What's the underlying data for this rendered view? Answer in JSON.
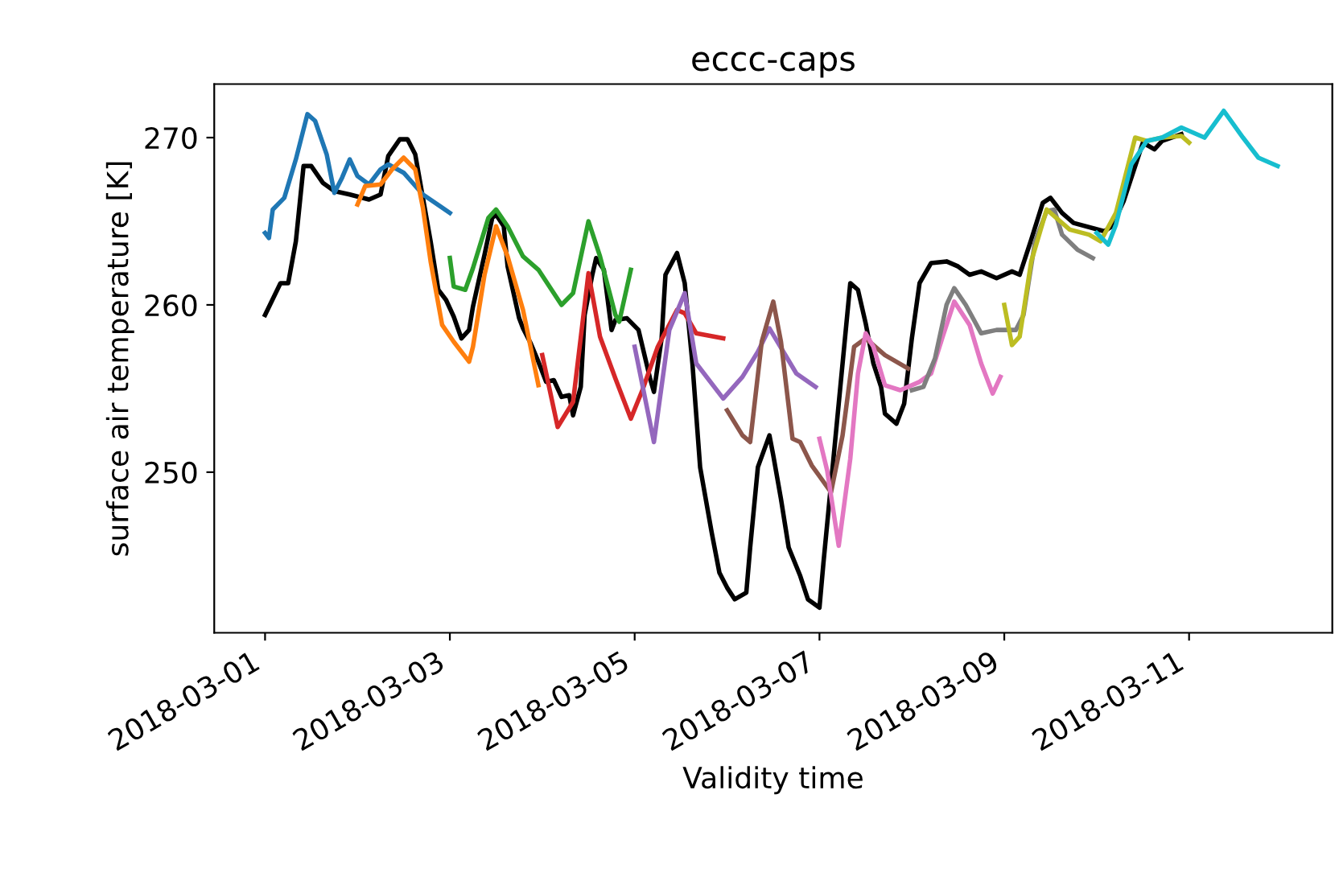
{
  "chart_data": {
    "type": "line",
    "title": "eccc-caps",
    "xlabel": "Validity time",
    "ylabel": "surface air temperature [K]",
    "grid": false,
    "legend": false,
    "marker": "none",
    "line_style": "solid",
    "xlim": [
      "2018-02-28T10:48",
      "2018-03-12T13:12"
    ],
    "xticks": [
      "2018-03-01",
      "2018-03-03",
      "2018-03-05",
      "2018-03-07",
      "2018-03-09",
      "2018-03-11"
    ],
    "ylim": [
      240.4,
      273.2
    ],
    "yticks": [
      250,
      260,
      270
    ],
    "series": [
      {
        "color": "#000000",
        "x": [
          "2018-03-01T00:00",
          "2018-03-01T04:00",
          "2018-03-01T06:00",
          "2018-03-01T08:00",
          "2018-03-01T10:00",
          "2018-03-01T12:00",
          "2018-03-01T15:00",
          "2018-03-01T18:00",
          "2018-03-01T22:00",
          "2018-03-02T03:00",
          "2018-03-02T06:00",
          "2018-03-02T08:00",
          "2018-03-02T11:00",
          "2018-03-02T13:00",
          "2018-03-02T15:00",
          "2018-03-02T17:00",
          "2018-03-02T19:00",
          "2018-03-02T21:00",
          "2018-03-02T23:00",
          "2018-03-03T01:00",
          "2018-03-03T03:00",
          "2018-03-03T05:00",
          "2018-03-03T06:00",
          "2018-03-03T09:00",
          "2018-03-03T11:00",
          "2018-03-03T12:00",
          "2018-03-03T14:00",
          "2018-03-03T15:00",
          "2018-03-03T18:00",
          "2018-03-03T19:00",
          "2018-03-03T21:00",
          "2018-03-03T23:00",
          "2018-03-04T01:00",
          "2018-03-04T03:00",
          "2018-03-04T05:00",
          "2018-03-04T07:00",
          "2018-03-04T08:00",
          "2018-03-04T10:00",
          "2018-03-04T11:00",
          "2018-03-04T13:00",
          "2018-03-04T14:00",
          "2018-03-04T16:00",
          "2018-03-04T18:00",
          "2018-03-04T19:00",
          "2018-03-04T22:00",
          "2018-03-05T01:00",
          "2018-03-05T04:00",
          "2018-03-05T05:00",
          "2018-03-05T07:00",
          "2018-03-05T08:00",
          "2018-03-05T11:00",
          "2018-03-05T13:00",
          "2018-03-05T15:00",
          "2018-03-05T17:00",
          "2018-03-05T20:00",
          "2018-03-05T22:00",
          "2018-03-06T00:00",
          "2018-03-06T02:00",
          "2018-03-06T05:00",
          "2018-03-06T06:00",
          "2018-03-06T08:00",
          "2018-03-06T11:00",
          "2018-03-06T12:00",
          "2018-03-06T14:00",
          "2018-03-06T16:00",
          "2018-03-06T19:00",
          "2018-03-06T21:00",
          "2018-03-07T00:00",
          "2018-03-07T01:00",
          "2018-03-07T03:00",
          "2018-03-07T05:00",
          "2018-03-07T08:00",
          "2018-03-07T10:00",
          "2018-03-07T12:00",
          "2018-03-07T14:00",
          "2018-03-07T16:00",
          "2018-03-07T17:00",
          "2018-03-07T20:00",
          "2018-03-07T22:00",
          "2018-03-08T00:00",
          "2018-03-08T02:00",
          "2018-03-08T05:00",
          "2018-03-08T09:00",
          "2018-03-08T12:00",
          "2018-03-08T15:00",
          "2018-03-08T18:00",
          "2018-03-08T22:00",
          "2018-03-09T02:00",
          "2018-03-09T04:00",
          "2018-03-09T07:00",
          "2018-03-09T10:00",
          "2018-03-09T12:00",
          "2018-03-09T15:00",
          "2018-03-09T18:00",
          "2018-03-10T02:00",
          "2018-03-10T04:00",
          "2018-03-10T07:00",
          "2018-03-10T12:00",
          "2018-03-10T15:00",
          "2018-03-10T17:00",
          "2018-03-10T22:00"
        ],
        "values": [
          259.4,
          261.3,
          261.3,
          263.8,
          268.3,
          268.3,
          267.3,
          266.8,
          266.6,
          266.3,
          266.6,
          268.9,
          269.9,
          269.9,
          269.0,
          266.4,
          263.8,
          260.9,
          260.3,
          259.3,
          258.0,
          258.5,
          259.9,
          263.0,
          265.2,
          265.4,
          264.7,
          262.3,
          259.2,
          258.6,
          257.7,
          256.6,
          255.4,
          255.5,
          254.5,
          254.6,
          253.4,
          255.1,
          259.4,
          261.8,
          262.8,
          262.1,
          258.5,
          259.1,
          259.2,
          258.5,
          255.6,
          254.8,
          258.0,
          261.8,
          263.1,
          261.3,
          256.5,
          250.3,
          246.4,
          244.0,
          243.1,
          242.4,
          242.8,
          245.5,
          250.3,
          252.2,
          251.0,
          248.4,
          245.5,
          243.8,
          242.4,
          241.9,
          244.5,
          249.3,
          254.1,
          261.3,
          260.9,
          258.9,
          256.5,
          255.1,
          253.5,
          252.9,
          254.1,
          258.0,
          261.3,
          262.5,
          262.6,
          262.3,
          261.8,
          262.0,
          261.6,
          262.0,
          261.8,
          263.9,
          266.1,
          266.4,
          265.5,
          264.9,
          264.4,
          264.7,
          266.2,
          269.7,
          269.3,
          269.8,
          270.2
        ]
      },
      {
        "color": "#1f77b4",
        "x": [
          "2018-03-01T00:00",
          "2018-03-01T01:00",
          "2018-03-01T02:00",
          "2018-03-01T05:00",
          "2018-03-01T08:00",
          "2018-03-01T11:00",
          "2018-03-01T13:00",
          "2018-03-01T16:00",
          "2018-03-01T18:00",
          "2018-03-01T20:00",
          "2018-03-01T22:00",
          "2018-03-02T00:00",
          "2018-03-02T03:00",
          "2018-03-02T06:00",
          "2018-03-02T08:00",
          "2018-03-02T12:00",
          "2018-03-02T17:00",
          "2018-03-03T00:00"
        ],
        "values": [
          264.3,
          264.0,
          265.7,
          266.4,
          268.7,
          271.4,
          271.0,
          269.0,
          266.7,
          267.6,
          268.7,
          267.7,
          267.2,
          268.1,
          268.4,
          267.9,
          266.6,
          265.5
        ]
      },
      {
        "color": "#ff7f0e",
        "x": [
          "2018-03-02T00:00",
          "2018-03-02T02:00",
          "2018-03-02T06:00",
          "2018-03-02T09:00",
          "2018-03-02T12:00",
          "2018-03-02T15:00",
          "2018-03-02T17:00",
          "2018-03-02T19:00",
          "2018-03-02T22:00",
          "2018-03-03T01:00",
          "2018-03-03T05:00",
          "2018-03-03T06:00",
          "2018-03-03T09:00",
          "2018-03-03T12:00",
          "2018-03-03T15:00",
          "2018-03-03T19:00",
          "2018-03-03T23:00"
        ],
        "values": [
          266.0,
          267.1,
          267.2,
          268.1,
          268.8,
          268.1,
          265.8,
          262.6,
          258.8,
          257.8,
          256.6,
          257.5,
          261.8,
          264.7,
          262.9,
          259.7,
          255.2
        ]
      },
      {
        "color": "#2ca02c",
        "x": [
          "2018-03-03T00:00",
          "2018-03-03T01:00",
          "2018-03-03T04:00",
          "2018-03-03T06:00",
          "2018-03-03T10:00",
          "2018-03-03T12:00",
          "2018-03-03T15:00",
          "2018-03-03T19:00",
          "2018-03-03T23:00",
          "2018-03-04T05:00",
          "2018-03-04T08:00",
          "2018-03-04T12:00",
          "2018-03-04T15:00",
          "2018-03-04T19:00",
          "2018-03-04T20:00",
          "2018-03-04T23:00"
        ],
        "values": [
          262.8,
          261.1,
          260.9,
          262.2,
          265.2,
          265.7,
          264.7,
          262.9,
          262.1,
          260.0,
          260.7,
          265.0,
          262.9,
          259.4,
          259.0,
          262.1
        ]
      },
      {
        "color": "#d62728",
        "x": [
          "2018-03-04T00:00",
          "2018-03-04T04:00",
          "2018-03-04T08:00",
          "2018-03-04T12:00",
          "2018-03-04T15:00",
          "2018-03-04T19:00",
          "2018-03-04T23:00",
          "2018-03-05T02:00",
          "2018-03-05T06:00",
          "2018-03-05T11:00",
          "2018-03-05T13:00",
          "2018-03-05T16:00",
          "2018-03-05T23:00"
        ],
        "values": [
          257.0,
          252.7,
          254.2,
          261.9,
          258.1,
          255.6,
          253.2,
          254.9,
          257.5,
          259.7,
          259.5,
          258.3,
          258.0
        ]
      },
      {
        "color": "#9467bd",
        "x": [
          "2018-03-05T00:00",
          "2018-03-05T05:00",
          "2018-03-05T09:00",
          "2018-03-05T13:00",
          "2018-03-05T16:00",
          "2018-03-05T23:00",
          "2018-03-06T04:00",
          "2018-03-06T08:00",
          "2018-03-06T11:00",
          "2018-03-06T18:00",
          "2018-03-06T23:00"
        ],
        "values": [
          257.5,
          251.8,
          258.5,
          260.7,
          256.5,
          254.4,
          255.7,
          257.2,
          258.6,
          255.9,
          255.1
        ]
      },
      {
        "color": "#8c564b",
        "x": [
          "2018-03-06T00:00",
          "2018-03-06T04:00",
          "2018-03-06T06:00",
          "2018-03-06T09:00",
          "2018-03-06T12:00",
          "2018-03-06T14:00",
          "2018-03-06T17:00",
          "2018-03-06T19:00",
          "2018-03-06T22:00",
          "2018-03-07T03:00",
          "2018-03-07T06:00",
          "2018-03-07T09:00",
          "2018-03-07T12:00",
          "2018-03-07T17:00",
          "2018-03-07T23:00"
        ],
        "values": [
          253.7,
          252.2,
          251.8,
          257.8,
          260.2,
          257.8,
          252.0,
          251.8,
          250.4,
          248.8,
          252.2,
          257.5,
          258.0,
          257.0,
          256.2
        ]
      },
      {
        "color": "#e377c2",
        "x": [
          "2018-03-07T00:00",
          "2018-03-07T02:00",
          "2018-03-07T05:00",
          "2018-03-07T08:00",
          "2018-03-07T10:00",
          "2018-03-07T12:00",
          "2018-03-07T14:00",
          "2018-03-07T17:00",
          "2018-03-07T21:00",
          "2018-03-08T02:00",
          "2018-03-08T05:00",
          "2018-03-08T08:00",
          "2018-03-08T11:00",
          "2018-03-08T15:00",
          "2018-03-08T18:00",
          "2018-03-08T21:00",
          "2018-03-08T23:00"
        ],
        "values": [
          252.0,
          250.1,
          245.6,
          250.8,
          255.9,
          258.3,
          257.5,
          255.2,
          254.9,
          255.4,
          255.9,
          258.1,
          260.2,
          258.8,
          256.5,
          254.7,
          255.7
        ]
      },
      {
        "color": "#7f7f7f",
        "x": [
          "2018-03-08T00:00",
          "2018-03-08T03:00",
          "2018-03-08T06:00",
          "2018-03-08T09:00",
          "2018-03-08T11:00",
          "2018-03-08T14:00",
          "2018-03-08T18:00",
          "2018-03-08T22:00",
          "2018-03-09T03:00",
          "2018-03-09T05:00",
          "2018-03-09T08:00",
          "2018-03-09T11:00",
          "2018-03-09T13:00",
          "2018-03-09T15:00",
          "2018-03-09T19:00",
          "2018-03-09T23:00"
        ],
        "values": [
          254.9,
          255.1,
          256.8,
          260.0,
          261.0,
          260.0,
          258.3,
          258.5,
          258.5,
          259.4,
          263.8,
          265.6,
          265.7,
          264.2,
          263.3,
          262.8
        ]
      },
      {
        "color": "#bcbd22",
        "x": [
          "2018-03-09T00:00",
          "2018-03-09T02:00",
          "2018-03-09T04:00",
          "2018-03-09T07:00",
          "2018-03-09T11:00",
          "2018-03-09T13:00",
          "2018-03-09T17:00",
          "2018-03-09T22:00",
          "2018-03-10T01:00",
          "2018-03-10T05:00",
          "2018-03-10T10:00",
          "2018-03-10T13:00",
          "2018-03-10T17:00",
          "2018-03-10T22:00",
          "2018-03-11T00:00"
        ],
        "values": [
          260.0,
          257.6,
          258.1,
          262.6,
          265.7,
          265.3,
          264.5,
          264.2,
          263.8,
          265.5,
          270.0,
          269.8,
          270.0,
          270.1,
          269.7
        ]
      },
      {
        "color": "#17becf",
        "x": [
          "2018-03-10T00:00",
          "2018-03-10T03:00",
          "2018-03-10T05:00",
          "2018-03-10T09:00",
          "2018-03-10T13:00",
          "2018-03-10T17:00",
          "2018-03-10T22:00",
          "2018-03-11T01:00",
          "2018-03-11T04:00",
          "2018-03-11T09:00",
          "2018-03-11T14:00",
          "2018-03-11T18:00",
          "2018-03-11T23:00"
        ],
        "values": [
          264.3,
          263.6,
          264.8,
          268.4,
          269.8,
          270.0,
          270.6,
          270.3,
          270.0,
          271.6,
          270.0,
          268.8,
          268.3
        ]
      }
    ]
  }
}
